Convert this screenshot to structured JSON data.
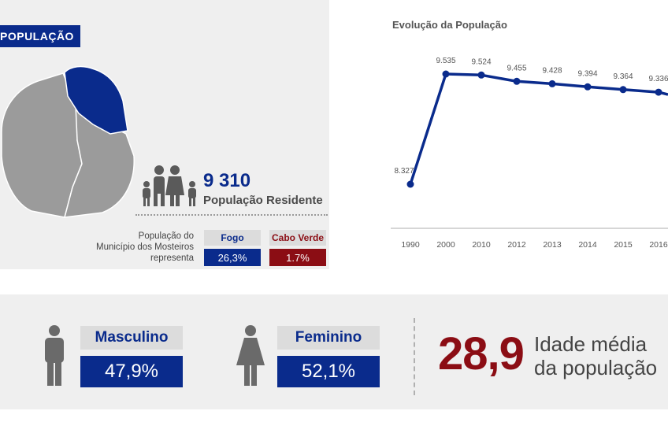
{
  "section": {
    "title": "POPULAÇÃO"
  },
  "population": {
    "value": "9 310",
    "label": "População Residente"
  },
  "representation": {
    "text_line1": "População do",
    "text_line2": "Município dos Mosteiros",
    "text_line3": "representa",
    "fogo": {
      "label": "Fogo",
      "value": "26,3%"
    },
    "cabo_verde": {
      "label": "Cabo Verde",
      "value": "1.7%"
    }
  },
  "chart": {
    "title": "Evolução da População"
  },
  "chart_data": {
    "type": "line",
    "title": "Evolução da População",
    "categories": [
      "1990",
      "2000",
      "2010",
      "2012",
      "2013",
      "2014",
      "2015",
      "2016"
    ],
    "series": [
      {
        "values": [
          8327,
          9535,
          9524,
          9455,
          9428,
          9394,
          9364,
          9336
        ]
      }
    ],
    "data_labels": [
      "8.327",
      "9.535",
      "9.524",
      "9.455",
      "9.428",
      "9.394",
      "9.364",
      "9.336"
    ],
    "color": "#0a2b8c",
    "grid": false
  },
  "gender": {
    "male": {
      "label": "Masculino",
      "value": "47,9%"
    },
    "female": {
      "label": "Feminino",
      "value": "52,1%"
    }
  },
  "age": {
    "value": "28,9",
    "label_line1": "Idade média",
    "label_line2": "da população"
  },
  "colors": {
    "brand_blue": "#0a2b8c",
    "brand_red": "#8b0d14",
    "panel_grey": "#efefef",
    "map_grey": "#9b9b9b"
  }
}
